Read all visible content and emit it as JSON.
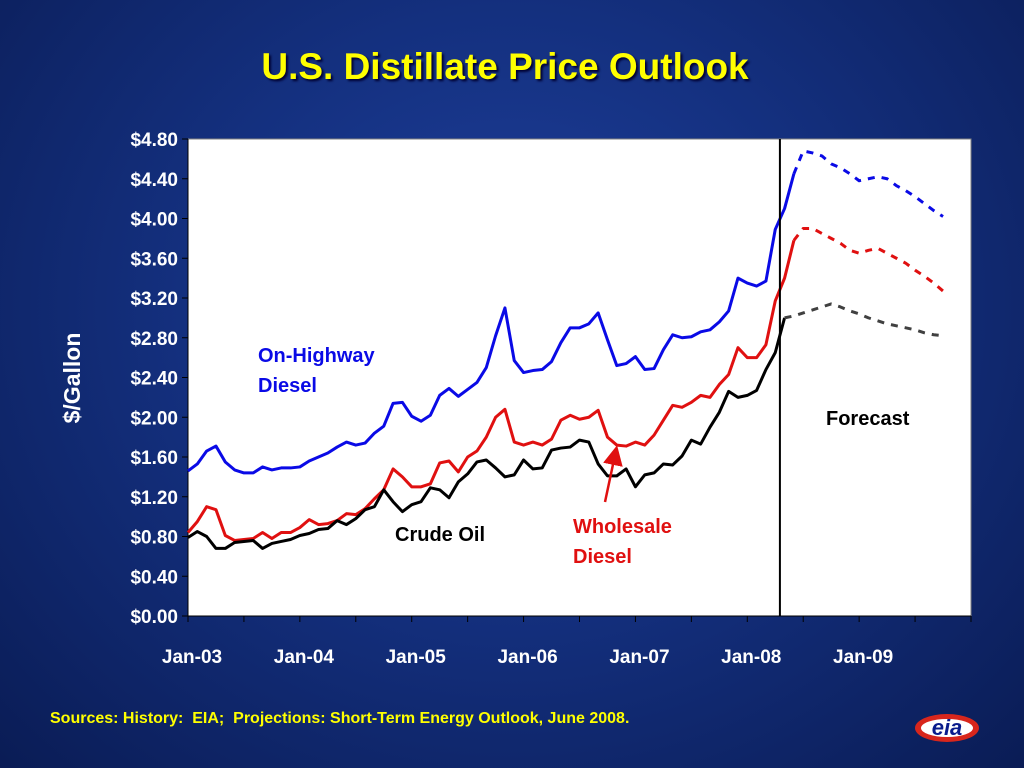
{
  "title": "U.S. Distillate Price Outlook",
  "source_note": "Sources: History:  EIA;  Projections: Short-Term Energy Outlook, June 2008.",
  "logo_text": "eia",
  "colors": {
    "on_highway": "#0a0ae6",
    "wholesale": "#e01010",
    "crude": "#000000",
    "forecast_crude": "#404040",
    "title": "#ffff00"
  },
  "chart_data": {
    "type": "line",
    "title": "U.S. Distillate Price Outlook",
    "xlabel": "",
    "ylabel": "$/Gallon",
    "ylim": [
      0,
      4.8
    ],
    "yticks": [
      {
        "value": 0.0,
        "label": "$0.00"
      },
      {
        "value": 0.4,
        "label": "$0.40"
      },
      {
        "value": 0.8,
        "label": "$0.80"
      },
      {
        "value": 1.2,
        "label": "$1.20"
      },
      {
        "value": 1.6,
        "label": "$1.60"
      },
      {
        "value": 2.0,
        "label": "$2.00"
      },
      {
        "value": 2.4,
        "label": "$2.40"
      },
      {
        "value": 2.8,
        "label": "$2.80"
      },
      {
        "value": 3.2,
        "label": "$3.20"
      },
      {
        "value": 3.6,
        "label": "$3.60"
      },
      {
        "value": 4.0,
        "label": "$4.00"
      },
      {
        "value": 4.4,
        "label": "$4.40"
      },
      {
        "value": 4.8,
        "label": "$4.80"
      }
    ],
    "x_start": "Jan-03",
    "x_months": 84,
    "xticks": [
      {
        "month": 0,
        "label": "Jan-03"
      },
      {
        "month": 12,
        "label": "Jan-04"
      },
      {
        "month": 24,
        "label": "Jan-05"
      },
      {
        "month": 36,
        "label": "Jan-06"
      },
      {
        "month": 48,
        "label": "Jan-07"
      },
      {
        "month": 60,
        "label": "Jan-08"
      },
      {
        "month": 72,
        "label": "Jan-09"
      }
    ],
    "forecast_start_month": 63.5,
    "forecast_label": "Forecast",
    "series": [
      {
        "name": "On-Highway Diesel",
        "label_lines": [
          "On-Highway",
          "Diesel"
        ],
        "history": [
          1.46,
          1.53,
          1.66,
          1.71,
          1.55,
          1.47,
          1.44,
          1.44,
          1.5,
          1.47,
          1.49,
          1.49,
          1.5,
          1.56,
          1.6,
          1.64,
          1.7,
          1.75,
          1.72,
          1.74,
          1.84,
          1.91,
          2.14,
          2.15,
          2.01,
          1.96,
          2.02,
          2.22,
          2.29,
          2.21,
          2.28,
          2.35,
          2.5,
          2.82,
          3.1,
          2.57,
          2.45,
          2.47,
          2.48,
          2.56,
          2.75,
          2.9,
          2.9,
          2.94,
          3.05,
          2.78,
          2.52,
          2.54,
          2.61,
          2.48,
          2.49,
          2.68,
          2.83,
          2.8,
          2.81,
          2.86,
          2.88,
          2.96,
          3.07,
          3.4,
          3.35,
          3.32,
          3.37,
          3.89,
          4.1,
          4.45
        ],
        "forecast": [
          4.45,
          4.68,
          4.66,
          4.63,
          4.55,
          4.51,
          4.45,
          4.38,
          4.4,
          4.42,
          4.4,
          4.33,
          4.28,
          4.22,
          4.15,
          4.08,
          4.02
        ]
      },
      {
        "name": "Wholesale Diesel",
        "label_lines": [
          "Wholesale",
          "Diesel"
        ],
        "history": [
          0.84,
          0.95,
          1.1,
          1.07,
          0.81,
          0.76,
          0.77,
          0.78,
          0.84,
          0.78,
          0.84,
          0.84,
          0.89,
          0.97,
          0.92,
          0.93,
          0.96,
          1.03,
          1.02,
          1.08,
          1.18,
          1.27,
          1.48,
          1.4,
          1.3,
          1.3,
          1.33,
          1.54,
          1.56,
          1.45,
          1.6,
          1.66,
          1.8,
          2.0,
          2.08,
          1.75,
          1.72,
          1.75,
          1.72,
          1.78,
          1.97,
          2.02,
          1.98,
          2.0,
          2.07,
          1.8,
          1.72,
          1.71,
          1.75,
          1.72,
          1.82,
          1.97,
          2.12,
          2.1,
          2.15,
          2.22,
          2.2,
          2.33,
          2.43,
          2.7,
          2.6,
          2.6,
          2.73,
          3.17,
          3.4,
          3.78
        ],
        "forecast": [
          3.78,
          3.9,
          3.9,
          3.85,
          3.8,
          3.75,
          3.68,
          3.65,
          3.68,
          3.7,
          3.65,
          3.6,
          3.55,
          3.48,
          3.42,
          3.35,
          3.27
        ]
      },
      {
        "name": "Crude Oil",
        "label_lines": [
          "Crude Oil"
        ],
        "history": [
          0.79,
          0.85,
          0.8,
          0.68,
          0.68,
          0.74,
          0.75,
          0.76,
          0.68,
          0.73,
          0.75,
          0.77,
          0.81,
          0.83,
          0.87,
          0.88,
          0.96,
          0.92,
          0.98,
          1.07,
          1.1,
          1.27,
          1.15,
          1.05,
          1.12,
          1.15,
          1.29,
          1.27,
          1.19,
          1.35,
          1.43,
          1.55,
          1.57,
          1.49,
          1.4,
          1.42,
          1.57,
          1.48,
          1.49,
          1.67,
          1.69,
          1.7,
          1.77,
          1.75,
          1.53,
          1.41,
          1.41,
          1.48,
          1.3,
          1.42,
          1.44,
          1.53,
          1.52,
          1.61,
          1.77,
          1.73,
          1.9,
          2.05,
          2.26,
          2.2,
          2.22,
          2.27,
          2.48,
          2.65,
          3.0
        ],
        "forecast": [
          3.0,
          3.02,
          3.05,
          3.08,
          3.11,
          3.14,
          3.11,
          3.07,
          3.04,
          3.0,
          2.97,
          2.94,
          2.92,
          2.9,
          2.88,
          2.85,
          2.83,
          2.82
        ]
      }
    ]
  }
}
